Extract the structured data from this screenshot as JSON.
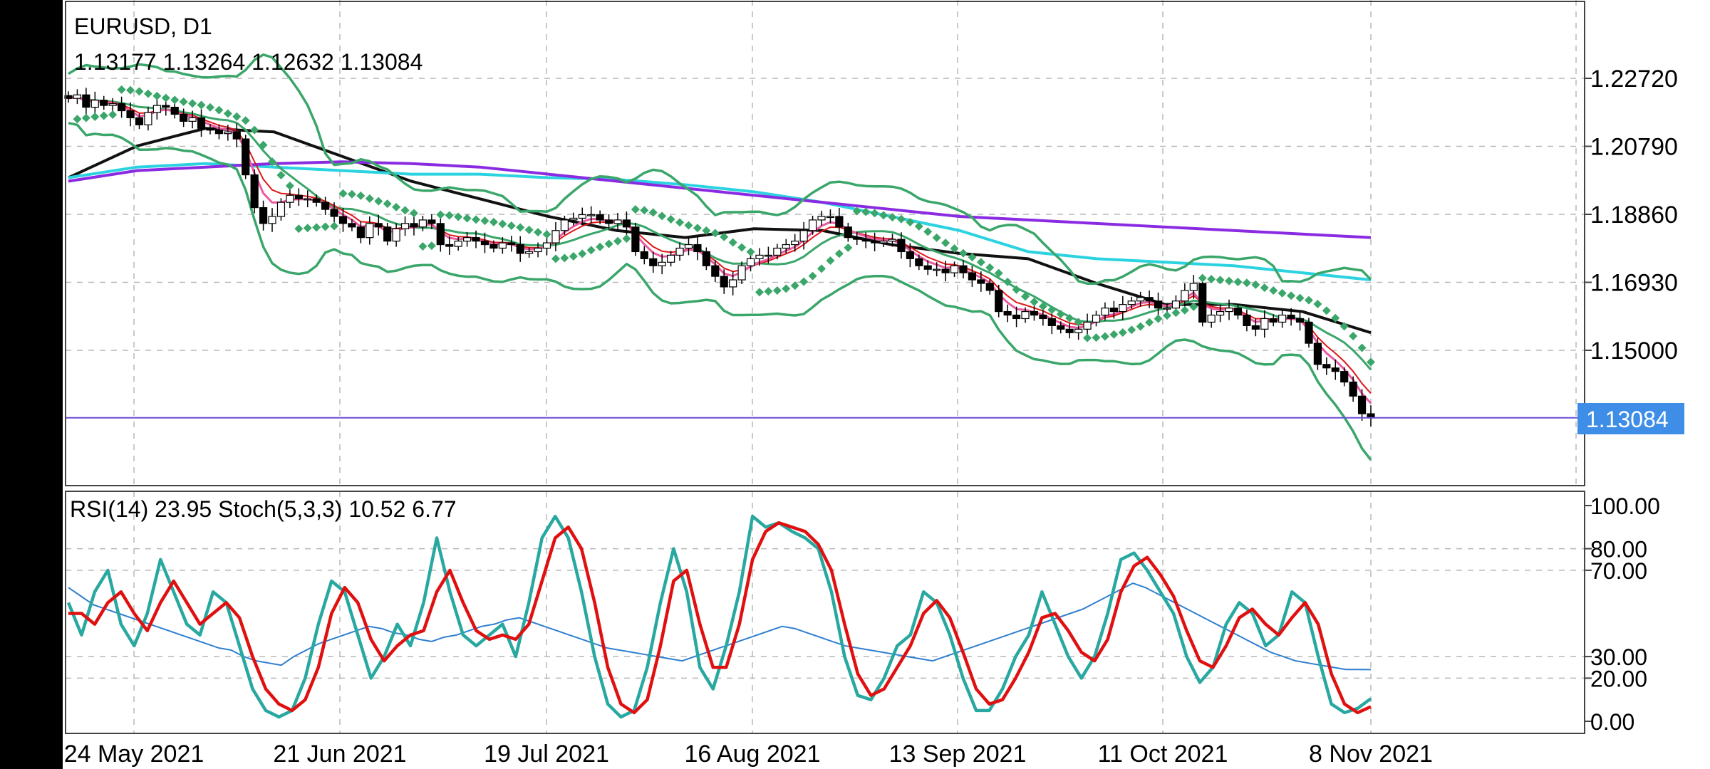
{
  "symbol_title": "EURUSD, D1",
  "ohlc_readout": "1.13177 1.13264 1.12632 1.13084",
  "current_price_label": "1.13084",
  "indicator_title": "RSI(14) 23.95 Stoch(5,3,3) 10.52 6.77",
  "colors": {
    "bollinger": "#3aa66a",
    "ma_black": "#111111",
    "ma_cyan": "#2bd2e0",
    "ma_purple": "#8a2be2",
    "ma_red": "#e01818",
    "ma_pink": "#ea5aa0",
    "psar": "#3aa66a",
    "rsi": "#2f7fd0",
    "stoch_main": "#28a8a0",
    "stoch_signal": "#e01010",
    "current_line": "#6a4ed6",
    "price_tag_bg": "#3e8ee8"
  },
  "chart_data": [
    {
      "type": "candlestick",
      "title": "EURUSD, D1",
      "x_tick_labels": [
        "24 May 2021",
        "21 Jun 2021",
        "19 Jul 2021",
        "16 Aug 2021",
        "13 Sep 2021",
        "11 Oct 2021",
        "8 Nov 2021"
      ],
      "y_tick_labels": [
        "1.22720",
        "1.20790",
        "1.18860",
        "1.16930",
        "1.15000"
      ],
      "ylim": [
        1.115,
        1.238
      ],
      "last_bar": {
        "open": 1.13177,
        "high": 1.13264,
        "low": 1.12632,
        "close": 1.13084
      },
      "closes": [
        1.2215,
        1.2225,
        1.219,
        1.221,
        1.2195,
        1.22,
        1.218,
        1.216,
        1.214,
        1.2175,
        1.2195,
        1.219,
        1.217,
        1.215,
        1.216,
        1.213,
        1.2125,
        1.2115,
        1.212,
        1.21,
        1.1998,
        1.1905,
        1.186,
        1.188,
        1.192,
        1.194,
        1.193,
        1.193,
        1.192,
        1.19,
        1.188,
        1.186,
        1.185,
        1.182,
        1.186,
        1.185,
        1.181,
        1.1845,
        1.186,
        1.185,
        1.187,
        1.186,
        1.18,
        1.1795,
        1.181,
        1.182,
        1.181,
        1.18,
        1.179,
        1.1805,
        1.18,
        1.1775,
        1.178,
        1.179,
        1.1805,
        1.184,
        1.187,
        1.1875,
        1.1885,
        1.1885,
        1.187,
        1.186,
        1.187,
        1.185,
        1.178,
        1.176,
        1.174,
        1.175,
        1.177,
        1.179,
        1.18,
        1.178,
        1.174,
        1.171,
        1.168,
        1.17,
        1.174,
        1.176,
        1.177,
        1.177,
        1.179,
        1.18,
        1.181,
        1.184,
        1.187,
        1.188,
        1.188,
        1.185,
        1.182,
        1.1815,
        1.181,
        1.1805,
        1.181,
        1.1815,
        1.178,
        1.176,
        1.174,
        1.173,
        1.173,
        1.172,
        1.174,
        1.172,
        1.17,
        1.169,
        1.167,
        1.161,
        1.16,
        1.159,
        1.161,
        1.16,
        1.159,
        1.157,
        1.156,
        1.155,
        1.156,
        1.158,
        1.16,
        1.162,
        1.161,
        1.163,
        1.164,
        1.165,
        1.164,
        1.162,
        1.162,
        1.164,
        1.167,
        1.169,
        1.158,
        1.16,
        1.161,
        1.162,
        1.16,
        1.157,
        1.156,
        1.159,
        1.158,
        1.16,
        1.159,
        1.158,
        1.152,
        1.146,
        1.145,
        1.144,
        1.141,
        1.137,
        1.132,
        1.1308
      ],
      "series": [
        {
          "name": "MA black",
          "values": [
            1.199,
            1.208,
            1.213,
            1.212,
            1.205,
            1.198,
            1.193,
            1.188,
            1.184,
            1.182,
            1.1845,
            1.184,
            1.18,
            1.1775,
            1.176,
            1.169,
            1.163,
            1.163,
            1.161,
            1.155
          ]
        },
        {
          "name": "MA cyan",
          "values": [
            1.199,
            1.202,
            1.203,
            1.202,
            1.201,
            1.2,
            1.2,
            1.199,
            1.1985,
            1.197,
            1.195,
            1.192,
            1.188,
            1.184,
            1.178,
            1.176,
            1.175,
            1.174,
            1.172,
            1.17
          ]
        },
        {
          "name": "MA purple",
          "values": [
            1.198,
            1.201,
            1.202,
            1.203,
            1.2035,
            1.203,
            1.202,
            1.2,
            1.198,
            1.196,
            1.194,
            1.192,
            1.19,
            1.188,
            1.187,
            1.186,
            1.185,
            1.184,
            1.183,
            1.182
          ]
        }
      ]
    },
    {
      "type": "line",
      "title": "RSI(14) 23.95 Stoch(5,3,3) 10.52 6.77",
      "y_tick_labels": [
        "100.00",
        "80.00",
        "70.00",
        "30.00",
        "20.00",
        "0.00"
      ],
      "ylim": [
        0,
        100
      ],
      "levels": [
        80,
        70,
        30,
        20
      ],
      "series": [
        {
          "name": "RSI(14)",
          "last": 23.95,
          "values": [
            62,
            58,
            54,
            52,
            50,
            48,
            46,
            44,
            42,
            40,
            38,
            36,
            34,
            33,
            30,
            28,
            27,
            26,
            30,
            33,
            36,
            38,
            40,
            42,
            44,
            43,
            41,
            40,
            38,
            37,
            39,
            40,
            42,
            44,
            45,
            47,
            48,
            46,
            44,
            42,
            40,
            38,
            36,
            34,
            33,
            32,
            31,
            30,
            29,
            28,
            30,
            32,
            34,
            36,
            38,
            40,
            42,
            44,
            43,
            41,
            39,
            37,
            35,
            34,
            33,
            32,
            31,
            30,
            29,
            28,
            30,
            32,
            34,
            36,
            38,
            40,
            42,
            44,
            46,
            48,
            50,
            52,
            55,
            58,
            61,
            64,
            62,
            59,
            56,
            53,
            50,
            47,
            44,
            41,
            38,
            35,
            32,
            30,
            28,
            27,
            26,
            25,
            24,
            24,
            23.95
          ]
        },
        {
          "name": "Stoch main",
          "last": 10.52,
          "values": [
            55,
            40,
            60,
            70,
            45,
            35,
            50,
            75,
            60,
            45,
            40,
            60,
            55,
            35,
            15,
            5,
            2,
            5,
            20,
            45,
            65,
            60,
            40,
            20,
            30,
            45,
            35,
            55,
            85,
            60,
            40,
            35,
            40,
            45,
            30,
            55,
            85,
            95,
            85,
            60,
            30,
            8,
            2,
            5,
            25,
            55,
            80,
            60,
            25,
            15,
            35,
            60,
            95,
            90,
            92,
            88,
            85,
            80,
            60,
            30,
            12,
            10,
            20,
            35,
            40,
            60,
            55,
            40,
            20,
            5,
            5,
            15,
            30,
            40,
            60,
            45,
            30,
            20,
            30,
            50,
            75,
            78,
            70,
            60,
            50,
            30,
            18,
            25,
            45,
            55,
            50,
            35,
            40,
            60,
            55,
            30,
            8,
            4,
            6,
            10.52
          ]
        },
        {
          "name": "Stoch signal",
          "last": 6.77,
          "values": [
            50,
            50,
            45,
            55,
            60,
            50,
            42,
            55,
            65,
            55,
            45,
            50,
            55,
            48,
            30,
            15,
            8,
            5,
            10,
            25,
            50,
            62,
            55,
            38,
            28,
            35,
            40,
            42,
            60,
            70,
            55,
            42,
            38,
            40,
            38,
            45,
            65,
            85,
            90,
            80,
            55,
            25,
            8,
            4,
            10,
            35,
            65,
            70,
            45,
            25,
            25,
            45,
            75,
            88,
            92,
            90,
            88,
            82,
            70,
            45,
            22,
            12,
            15,
            25,
            35,
            50,
            56,
            48,
            32,
            15,
            8,
            10,
            20,
            32,
            48,
            50,
            42,
            32,
            28,
            38,
            60,
            72,
            76,
            68,
            58,
            42,
            28,
            25,
            35,
            48,
            52,
            45,
            40,
            48,
            55,
            45,
            22,
            8,
            4,
            6.77
          ]
        }
      ]
    }
  ]
}
